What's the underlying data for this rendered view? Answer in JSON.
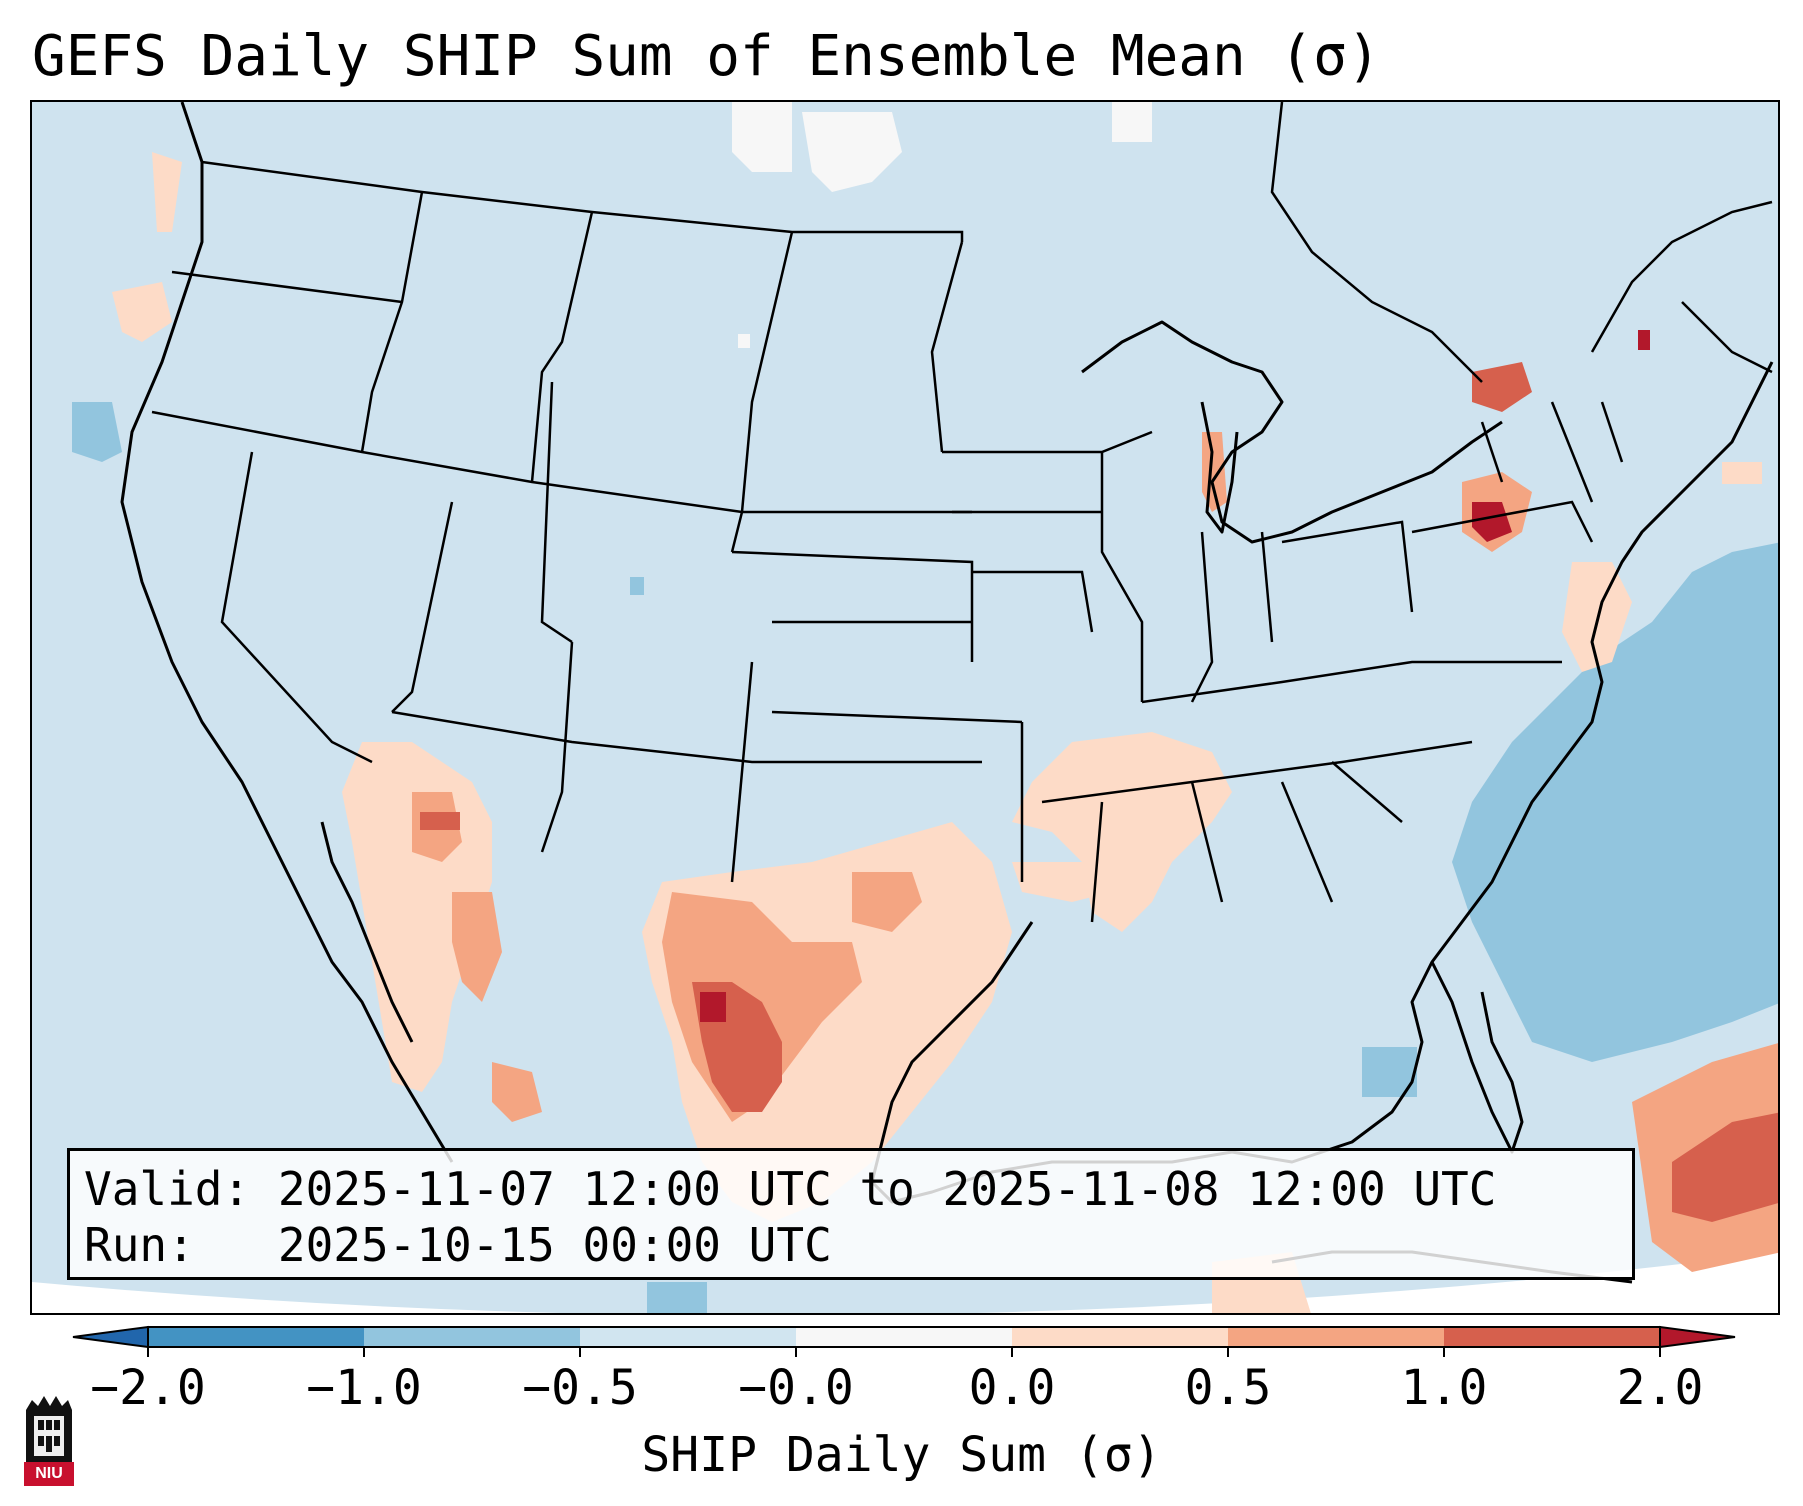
{
  "title": "GEFS Daily SHIP Sum of Ensemble Mean (σ)",
  "info": {
    "valid_label": "Valid:",
    "valid_value": "2025-11-07 12:00 UTC to 2025-11-08 12:00 UTC",
    "run_label": "Run:",
    "run_value": "2025-10-15 00:00 UTC"
  },
  "colorbar": {
    "label": "SHIP Daily Sum (σ)",
    "ticks": [
      "−2.0",
      "−1.0",
      "−0.5",
      "−0.0",
      "0.0",
      "0.5",
      "1.0",
      "2.0"
    ],
    "bins": [
      {
        "from": -2.0,
        "to": -1.0,
        "color": "#4393c3"
      },
      {
        "from": -1.0,
        "to": -0.5,
        "color": "#92c5de"
      },
      {
        "from": -0.5,
        "to": -0.0,
        "color": "#d1e5f0"
      },
      {
        "from": -0.0,
        "to": 0.0,
        "color": "#f7f7f7"
      },
      {
        "from": 0.0,
        "to": 0.5,
        "color": "#fddbc7"
      },
      {
        "from": 0.5,
        "to": 1.0,
        "color": "#f4a582"
      },
      {
        "from": 1.0,
        "to": 2.0,
        "color": "#d6604d"
      }
    ],
    "under_color": "#2166ac",
    "over_color": "#b2182b"
  },
  "map": {
    "background_color": "#cfe3ef",
    "region": "CONUS"
  },
  "logo": {
    "text": "NIU",
    "icon": "niu-tower-logo-icon"
  }
}
